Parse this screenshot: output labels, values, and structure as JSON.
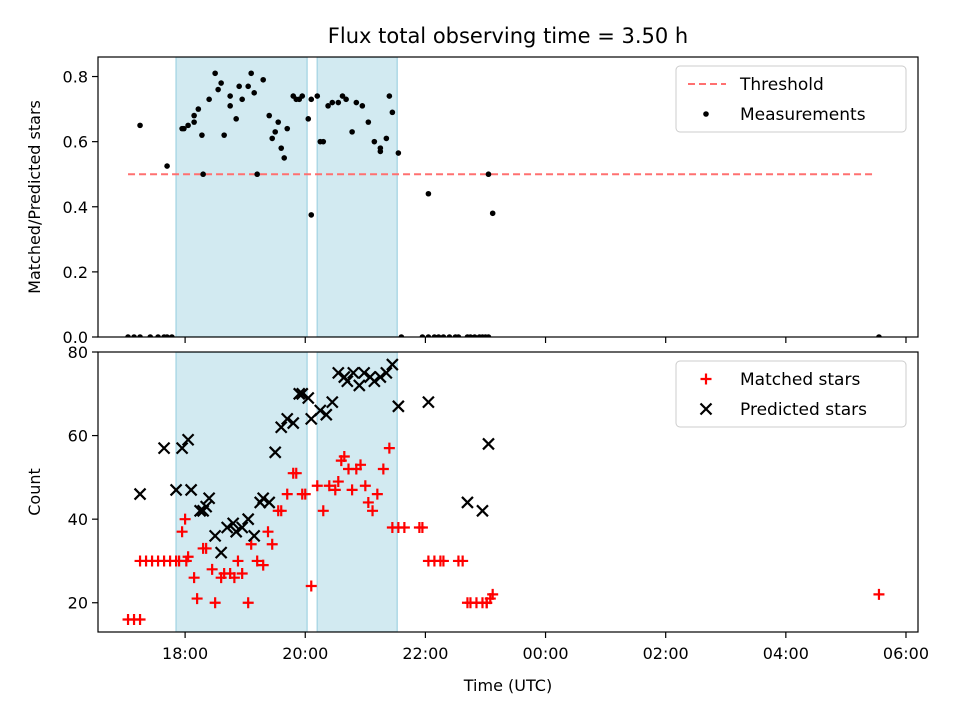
{
  "figure": {
    "title": "Flux total observing time = 3.50 h",
    "xlabel": "Time (UTC)",
    "xticks": [
      {
        "value": 18,
        "label": "18:00"
      },
      {
        "value": 20,
        "label": "20:00"
      },
      {
        "value": 22,
        "label": "22:00"
      },
      {
        "value": 24,
        "label": "00:00"
      },
      {
        "value": 26,
        "label": "02:00"
      },
      {
        "value": 28,
        "label": "04:00"
      },
      {
        "value": 30,
        "label": "06:00"
      }
    ],
    "xlim": [
      16.55,
      30.2
    ],
    "shaded_intervals": [
      [
        17.85,
        20.03
      ],
      [
        20.2,
        21.53
      ]
    ],
    "colors": {
      "shade": "#add8e6",
      "threshold": "#ff7070",
      "matched": "#ff0000",
      "predicted": "#000000",
      "measurements": "#000000"
    }
  },
  "chart_data": [
    {
      "type": "scatter",
      "ylabel": "Matched/Predicted stars",
      "ylim": [
        0,
        0.86
      ],
      "yticks": [
        {
          "value": 0.0,
          "label": "0.0"
        },
        {
          "value": 0.2,
          "label": "0.2"
        },
        {
          "value": 0.4,
          "label": "0.4"
        },
        {
          "value": 0.6,
          "label": "0.6"
        },
        {
          "value": 0.8,
          "label": "0.8"
        }
      ],
      "legend": {
        "position": "top-right",
        "entries": [
          "Threshold",
          "Measurements"
        ]
      },
      "threshold": {
        "name": "Threshold",
        "y": 0.5,
        "x": [
          17.05,
          29.5
        ]
      },
      "series": [
        {
          "name": "Measurements",
          "marker": "dot",
          "x": [
            17.05,
            17.15,
            17.25,
            17.42,
            17.55,
            17.65,
            17.7,
            17.78,
            17.95,
            18.05,
            18.15,
            18.3,
            18.4,
            18.5,
            18.6,
            18.65,
            18.75,
            18.85,
            18.95,
            19.05,
            19.1,
            19.2,
            19.3,
            19.4,
            19.5,
            19.55,
            19.6,
            19.7,
            19.8,
            19.9,
            19.95,
            20.05,
            20.1,
            20.2,
            20.3,
            20.38,
            20.45,
            20.55,
            20.62,
            20.68,
            20.78,
            20.85,
            20.95,
            21.05,
            21.15,
            21.25,
            21.35,
            21.45,
            21.55,
            21.25,
            21.4,
            17.25,
            17.7,
            17.98,
            18.15,
            18.22,
            18.28,
            18.55,
            18.75,
            18.9,
            19.15,
            19.45,
            19.65,
            19.85,
            20.1,
            20.25,
            21.6,
            21.95,
            22.05,
            22.15,
            22.22,
            22.3,
            22.4,
            22.5,
            22.55,
            22.7,
            22.75,
            22.82,
            22.9,
            22.95,
            23.0,
            23.05,
            23.05,
            23.12,
            22.05,
            29.55
          ],
          "y": [
            0.0,
            0.0,
            0.0,
            0.0,
            0.0,
            0.0,
            0.0,
            0.0,
            0.64,
            0.65,
            0.66,
            0.5,
            0.73,
            0.81,
            0.78,
            0.62,
            0.71,
            0.67,
            0.73,
            0.77,
            0.81,
            0.5,
            0.79,
            0.68,
            0.63,
            0.66,
            0.58,
            0.64,
            0.74,
            0.73,
            0.74,
            0.67,
            0.375,
            0.74,
            0.6,
            0.71,
            0.72,
            0.72,
            0.74,
            0.73,
            0.63,
            0.72,
            0.71,
            0.66,
            0.6,
            0.57,
            0.61,
            0.69,
            0.565,
            0.58,
            0.74,
            0.65,
            0.525,
            0.64,
            0.68,
            0.7,
            0.62,
            0.76,
            0.74,
            0.77,
            0.75,
            0.61,
            0.55,
            0.73,
            0.73,
            0.6,
            0.0,
            0.0,
            0.0,
            0.0,
            0.0,
            0.0,
            0.0,
            0.0,
            0.0,
            0.0,
            0.0,
            0.0,
            0.0,
            0.0,
            0.0,
            0.5,
            0.0,
            0.38,
            0.44,
            0.0
          ]
        }
      ]
    },
    {
      "type": "scatter",
      "ylabel": "Count",
      "ylim": [
        13,
        80
      ],
      "yticks": [
        {
          "value": 20,
          "label": "20"
        },
        {
          "value": 40,
          "label": "40"
        },
        {
          "value": 60,
          "label": "60"
        },
        {
          "value": 80,
          "label": "80"
        }
      ],
      "legend": {
        "position": "top-right",
        "entries": [
          "Matched stars",
          "Predicted stars"
        ]
      },
      "series": [
        {
          "name": "Matched stars",
          "marker": "plus",
          "x": [
            17.05,
            17.15,
            17.25,
            17.25,
            17.35,
            17.45,
            17.55,
            17.65,
            17.75,
            17.85,
            17.95,
            18.0,
            18.05,
            18.15,
            18.2,
            18.3,
            18.35,
            18.45,
            18.5,
            18.6,
            18.65,
            18.75,
            18.82,
            18.88,
            18.95,
            19.05,
            19.1,
            19.2,
            19.3,
            19.38,
            19.45,
            19.55,
            19.6,
            19.7,
            19.8,
            19.85,
            19.95,
            20.0,
            20.1,
            20.2,
            20.3,
            20.4,
            20.5,
            20.55,
            20.6,
            20.65,
            20.72,
            20.78,
            20.85,
            20.92,
            21.0,
            21.05,
            21.12,
            21.2,
            21.3,
            21.4,
            21.45,
            21.55,
            21.65,
            21.9,
            21.95,
            22.05,
            22.15,
            22.25,
            22.3,
            22.55,
            22.62,
            22.7,
            22.75,
            22.85,
            22.95,
            23.02,
            23.08,
            23.12,
            23.02,
            29.55,
            17.9,
            18.02
          ],
          "y": [
            16,
            16,
            16,
            30,
            30,
            30,
            30,
            30,
            30,
            30,
            37,
            40,
            31,
            26,
            21,
            33,
            33,
            28,
            20,
            26,
            27,
            27,
            26,
            30,
            27,
            20,
            34,
            30,
            29,
            37,
            34,
            42,
            42,
            46,
            51,
            51,
            46,
            46,
            24,
            48,
            42,
            48,
            47,
            49,
            54,
            55,
            52,
            47,
            52,
            53,
            48,
            44,
            42,
            46,
            52,
            57,
            38,
            38,
            38,
            38,
            38,
            30,
            30,
            30,
            30,
            30,
            30,
            20,
            20,
            20,
            20,
            20,
            21,
            22,
            20,
            22,
            30,
            30
          ]
        },
        {
          "name": "Predicted stars",
          "marker": "x",
          "x": [
            17.25,
            17.65,
            17.85,
            17.95,
            18.05,
            18.1,
            18.25,
            18.3,
            18.35,
            18.4,
            18.5,
            18.6,
            18.7,
            18.8,
            18.85,
            18.95,
            19.05,
            19.15,
            19.25,
            19.3,
            19.4,
            19.5,
            19.6,
            19.7,
            19.8,
            19.9,
            19.95,
            20.05,
            20.1,
            20.25,
            20.35,
            20.45,
            20.55,
            20.65,
            20.7,
            20.8,
            20.9,
            20.98,
            21.08,
            21.15,
            21.25,
            21.35,
            21.45,
            21.55,
            22.05,
            22.7,
            22.95,
            23.05
          ],
          "y": [
            46,
            57,
            47,
            57,
            59,
            47,
            42,
            42,
            43,
            45,
            36,
            32,
            38,
            39,
            37,
            38,
            40,
            36,
            44,
            45,
            44,
            56,
            62,
            64,
            63,
            70,
            70,
            69,
            64,
            66,
            65,
            68,
            75,
            74,
            73,
            75,
            72,
            75,
            74,
            73,
            74,
            75,
            77,
            67,
            68,
            44,
            42,
            58
          ]
        }
      ]
    }
  ]
}
